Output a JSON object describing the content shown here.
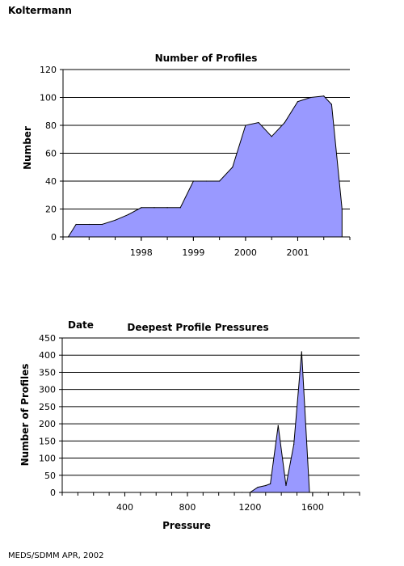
{
  "page": {
    "title": "Koltermann",
    "footer": "MEDS/SDMM APR, 2002"
  },
  "colors": {
    "fill": "#9999ff",
    "stroke": "#000000",
    "grid": "#000000"
  },
  "chart_data": [
    {
      "type": "area",
      "title": "Number of Profiles",
      "xlabel": "Date",
      "ylabel": "Number",
      "ylim": [
        0,
        120
      ],
      "yticks": [
        0,
        20,
        40,
        60,
        80,
        100,
        120
      ],
      "xticks": [
        {
          "label": "1998",
          "value": 1998.0
        },
        {
          "label": "1999",
          "value": 1999.0
        },
        {
          "label": "2000",
          "value": 2000.0
        },
        {
          "label": "2001",
          "value": 2001.0
        }
      ],
      "xlim": [
        1996.5,
        2002.0
      ],
      "grid": true,
      "x": [
        1996.6,
        1996.75,
        1997.0,
        1997.25,
        1997.5,
        1997.75,
        1998.0,
        1998.25,
        1998.5,
        1998.75,
        1999.0,
        1999.25,
        1999.5,
        1999.75,
        2000.0,
        2000.25,
        2000.5,
        2000.75,
        2001.0,
        2001.25,
        2001.5,
        2001.65,
        2001.85
      ],
      "y": [
        0,
        9,
        9,
        9,
        12,
        16,
        21,
        21,
        21,
        21,
        40,
        40,
        40,
        50,
        80,
        82,
        72,
        82,
        97,
        100,
        101,
        95,
        20
      ]
    },
    {
      "type": "area",
      "title": "Deepest Profile Pressures",
      "xlabel": "Pressure",
      "ylabel": "Number of Profiles",
      "ylim": [
        0,
        450
      ],
      "yticks": [
        0,
        50,
        100,
        150,
        200,
        250,
        300,
        350,
        400,
        450
      ],
      "xlim": [
        0,
        1900
      ],
      "xticks": [
        400,
        800,
        1200,
        1600
      ],
      "grid": true,
      "x": [
        0,
        100,
        200,
        300,
        400,
        500,
        600,
        700,
        800,
        900,
        1000,
        1100,
        1150,
        1200,
        1250,
        1300,
        1330,
        1380,
        1430,
        1480,
        1530,
        1580,
        1650,
        1700,
        1800,
        1900
      ],
      "y": [
        0,
        0,
        0,
        0,
        0,
        0,
        0,
        0,
        0,
        0,
        0,
        0,
        0,
        0,
        15,
        20,
        25,
        195,
        20,
        140,
        410,
        0,
        0,
        0,
        0,
        0
      ]
    }
  ]
}
